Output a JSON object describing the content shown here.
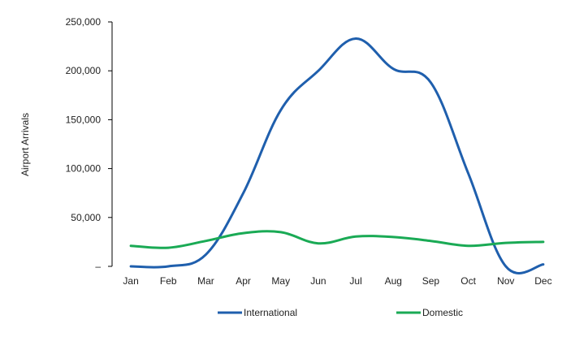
{
  "chart_data": {
    "type": "line",
    "title": "",
    "xlabel": "",
    "ylabel": "Airport Arrivals",
    "ylim": [
      0,
      250000
    ],
    "yticks": [
      "–",
      "50,000",
      "100,000",
      "150,000",
      "200,000",
      "250,000"
    ],
    "ytick_values": [
      0,
      50000,
      100000,
      150000,
      200000,
      250000
    ],
    "categories": [
      "Jan",
      "Feb",
      "Mar",
      "Apr",
      "May",
      "Jun",
      "Jul",
      "Aug",
      "Sep",
      "Oct",
      "Nov",
      "Dec"
    ],
    "grid": false,
    "legend_position": "bottom",
    "series": [
      {
        "name": "International",
        "color": "#1f5fad",
        "values": [
          0,
          0,
          12000,
          75000,
          160000,
          200000,
          233000,
          202000,
          188000,
          95000,
          0,
          2000
        ]
      },
      {
        "name": "Domestic",
        "color": "#1aaa55",
        "values": [
          21000,
          19000,
          26000,
          34000,
          35000,
          23500,
          30500,
          30000,
          26000,
          21000,
          24000,
          25000
        ]
      }
    ]
  }
}
